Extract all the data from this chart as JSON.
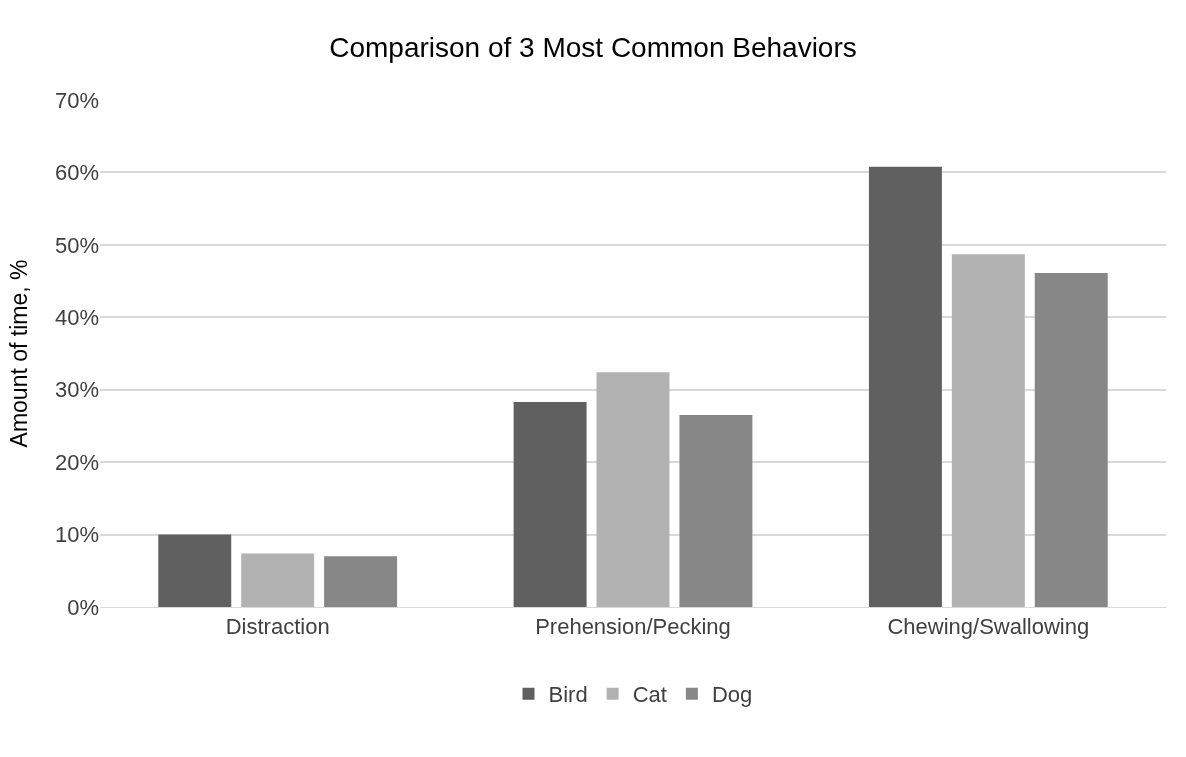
{
  "chart_data": {
    "type": "bar",
    "title": "Comparison of 3 Most Common Behaviors",
    "ylabel": "Amount of time, %",
    "categories": [
      "Distraction",
      "Prehension/Pecking",
      "Chewing/Swallowing"
    ],
    "series": [
      {
        "name": "Bird",
        "color": "#606060",
        "values": [
          10,
          28.3,
          60.8
        ]
      },
      {
        "name": "Cat",
        "color": "#b2b2b2",
        "values": [
          7.4,
          32.4,
          48.7
        ]
      },
      {
        "name": "Dog",
        "color": "#878787",
        "values": [
          7,
          26.5,
          46.1
        ]
      }
    ],
    "ylim": [
      0,
      70
    ],
    "yticks": [
      {
        "value": 0,
        "label": "0%"
      },
      {
        "value": 10,
        "label": "10%"
      },
      {
        "value": 20,
        "label": "20%"
      },
      {
        "value": 30,
        "label": "30%"
      },
      {
        "value": 40,
        "label": "40%"
      },
      {
        "value": 50,
        "label": "50%"
      },
      {
        "value": 60,
        "label": "60%"
      },
      {
        "value": 70,
        "label": "70%"
      }
    ],
    "grid": "y",
    "legend": "bottom"
  }
}
